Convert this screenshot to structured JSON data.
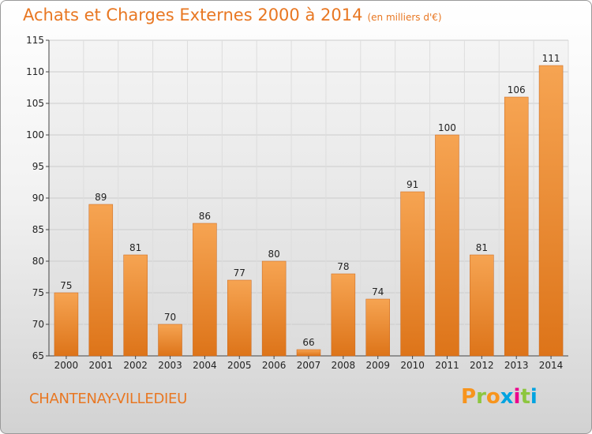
{
  "header": {
    "title": "Achats et Charges Externes 2000 à 2014",
    "subtitle": "(en milliers d'€)"
  },
  "footer": {
    "commune": "CHANTENAY-VILLEDIEU",
    "logo_letters": [
      "P",
      "r",
      "o",
      "x",
      "i",
      "t",
      "i"
    ],
    "logo_colors": [
      "#f7941d",
      "#8dc63f",
      "#f7941d",
      "#00a3e0",
      "#ec008c",
      "#8dc63f",
      "#00a3e0"
    ]
  },
  "chart_data": {
    "type": "bar",
    "categories": [
      "2000",
      "2001",
      "2002",
      "2003",
      "2004",
      "2005",
      "2006",
      "2007",
      "2008",
      "2009",
      "2010",
      "2011",
      "2012",
      "2013",
      "2014"
    ],
    "values": [
      75,
      89,
      81,
      70,
      86,
      77,
      80,
      66,
      78,
      74,
      91,
      100,
      81,
      106,
      111
    ],
    "ylim": [
      65,
      115
    ],
    "yticks": [
      65,
      70,
      75,
      80,
      85,
      90,
      95,
      100,
      105,
      110,
      115
    ],
    "grid": true,
    "bar_color": "#e87722"
  }
}
